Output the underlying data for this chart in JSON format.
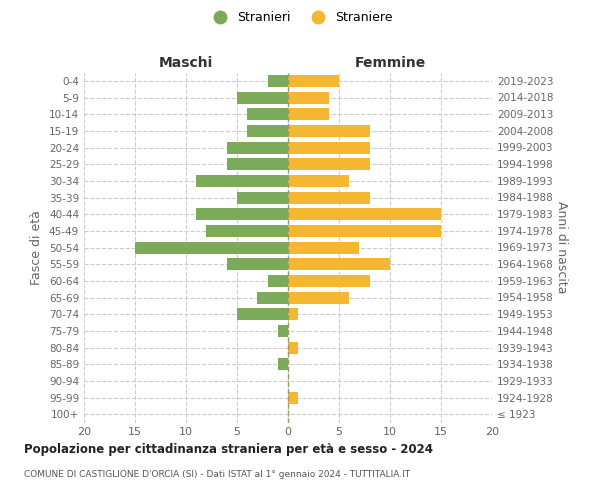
{
  "age_groups": [
    "100+",
    "95-99",
    "90-94",
    "85-89",
    "80-84",
    "75-79",
    "70-74",
    "65-69",
    "60-64",
    "55-59",
    "50-54",
    "45-49",
    "40-44",
    "35-39",
    "30-34",
    "25-29",
    "20-24",
    "15-19",
    "10-14",
    "5-9",
    "0-4"
  ],
  "birth_years": [
    "≤ 1923",
    "1924-1928",
    "1929-1933",
    "1934-1938",
    "1939-1943",
    "1944-1948",
    "1949-1953",
    "1954-1958",
    "1959-1963",
    "1964-1968",
    "1969-1973",
    "1974-1978",
    "1979-1983",
    "1984-1988",
    "1989-1993",
    "1994-1998",
    "1999-2003",
    "2004-2008",
    "2009-2013",
    "2014-2018",
    "2019-2023"
  ],
  "maschi": [
    0,
    0,
    0,
    1,
    0,
    1,
    5,
    3,
    2,
    6,
    15,
    8,
    9,
    5,
    9,
    6,
    6,
    4,
    4,
    5,
    2
  ],
  "femmine": [
    0,
    1,
    0,
    0,
    1,
    0,
    1,
    6,
    8,
    10,
    7,
    15,
    15,
    8,
    6,
    8,
    8,
    8,
    4,
    4,
    5
  ],
  "color_maschi": "#7aaa5a",
  "color_femmine": "#f5b731",
  "xlim": 20,
  "title": "Popolazione per cittadinanza straniera per età e sesso - 2024",
  "subtitle": "COMUNE DI CASTIGLIONE D'ORCIA (SI) - Dati ISTAT al 1° gennaio 2024 - TUTTITALIA.IT",
  "ylabel_left": "Fasce di età",
  "ylabel_right": "Anni di nascita",
  "xlabel_maschi": "Maschi",
  "xlabel_femmine": "Femmine",
  "legend_maschi": "Stranieri",
  "legend_femmine": "Straniere",
  "background_color": "#ffffff",
  "xticks": [
    20,
    15,
    10,
    5,
    0,
    5,
    10,
    15,
    20
  ]
}
